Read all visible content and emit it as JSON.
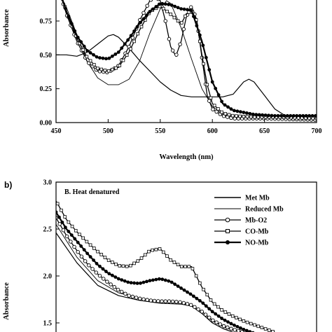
{
  "chart_data": [
    {
      "type": "line",
      "panel_label": "",
      "title": "",
      "xlabel": "Wavelength (nm)",
      "ylabel": "Absorbance",
      "xlim": [
        450,
        700
      ],
      "ylim": [
        0,
        1.0
      ],
      "xticks": [
        "450",
        "500",
        "550",
        "600",
        "650",
        "700"
      ],
      "yticks": [
        "0.00",
        "0.25",
        "0.50",
        "0.75"
      ],
      "series": [
        {
          "name": "Met Mb",
          "style": "thin",
          "x": [
            450,
            460,
            470,
            480,
            490,
            500,
            505,
            510,
            520,
            530,
            540,
            550,
            560,
            570,
            580,
            590,
            600,
            610,
            620,
            630,
            635,
            640,
            650,
            660,
            670,
            700
          ],
          "y": [
            0.5,
            0.5,
            0.49,
            0.52,
            0.58,
            0.64,
            0.65,
            0.63,
            0.55,
            0.46,
            0.38,
            0.3,
            0.24,
            0.2,
            0.19,
            0.19,
            0.19,
            0.19,
            0.21,
            0.3,
            0.32,
            0.3,
            0.2,
            0.1,
            0.05,
            0.03
          ]
        },
        {
          "name": "Reduced Mb",
          "style": "thin",
          "x": [
            450,
            460,
            470,
            480,
            490,
            500,
            510,
            520,
            530,
            540,
            550,
            556,
            560,
            570,
            580,
            590,
            600,
            610,
            620,
            630,
            650,
            700
          ],
          "y": [
            1.0,
            0.85,
            0.65,
            0.45,
            0.33,
            0.28,
            0.28,
            0.32,
            0.45,
            0.66,
            0.84,
            0.9,
            0.88,
            0.7,
            0.47,
            0.25,
            0.12,
            0.06,
            0.04,
            0.03,
            0.03,
            0.02
          ]
        },
        {
          "name": "Mb-O2",
          "style": "circle",
          "x": [
            450,
            460,
            470,
            480,
            490,
            500,
            510,
            520,
            530,
            540,
            545,
            550,
            555,
            560,
            565,
            570,
            575,
            580,
            585,
            590,
            595,
            600,
            610,
            620,
            650,
            700
          ],
          "y": [
            1.05,
            0.8,
            0.6,
            0.45,
            0.38,
            0.37,
            0.42,
            0.56,
            0.75,
            0.9,
            0.93,
            0.9,
            0.75,
            0.56,
            0.49,
            0.6,
            0.78,
            0.86,
            0.76,
            0.48,
            0.2,
            0.1,
            0.05,
            0.03,
            0.03,
            0.02
          ]
        },
        {
          "name": "CO-Mb",
          "style": "square",
          "x": [
            450,
            460,
            470,
            480,
            490,
            500,
            510,
            520,
            530,
            540,
            550,
            560,
            570,
            575,
            580,
            585,
            590,
            595,
            600,
            610,
            620,
            640,
            660,
            700
          ],
          "y": [
            1.05,
            0.82,
            0.62,
            0.48,
            0.4,
            0.38,
            0.41,
            0.52,
            0.68,
            0.82,
            0.86,
            0.8,
            0.73,
            0.8,
            0.83,
            0.75,
            0.5,
            0.28,
            0.14,
            0.07,
            0.05,
            0.04,
            0.04,
            0.03
          ]
        },
        {
          "name": "NO-Mb",
          "style": "filled",
          "x": [
            450,
            460,
            470,
            480,
            490,
            500,
            510,
            520,
            530,
            540,
            550,
            560,
            570,
            580,
            590,
            600,
            610,
            620,
            640,
            660,
            680,
            700
          ],
          "y": [
            1.05,
            0.82,
            0.64,
            0.53,
            0.48,
            0.47,
            0.52,
            0.62,
            0.73,
            0.82,
            0.88,
            0.87,
            0.84,
            0.83,
            0.6,
            0.3,
            0.14,
            0.09,
            0.06,
            0.05,
            0.05,
            0.05
          ]
        }
      ]
    },
    {
      "type": "line",
      "panel_label": "b)",
      "title": "B. Heat denatured",
      "xlabel": "",
      "ylabel": "Absorbance",
      "xlim": [
        450,
        700
      ],
      "ylim": [
        1.4,
        3.0
      ],
      "yticks": [
        "1.5",
        "2.0",
        "2.5",
        "3.0"
      ],
      "legend_position": "top-right",
      "series": [
        {
          "name": "Met Mb",
          "style": "thin",
          "x": [
            450,
            470,
            490,
            510,
            530,
            550,
            570,
            580,
            590,
            600,
            610,
            620,
            630,
            640,
            650,
            660
          ],
          "y": [
            2.46,
            2.14,
            1.9,
            1.79,
            1.74,
            1.71,
            1.7,
            1.68,
            1.6,
            1.5,
            1.44,
            1.4,
            1.37,
            1.34,
            1.31,
            1.28
          ]
        },
        {
          "name": "Reduced Mb",
          "style": "thin",
          "x": [
            450,
            470,
            490,
            510,
            530,
            550,
            570,
            580,
            590,
            600,
            610,
            620,
            630,
            640,
            650,
            660
          ],
          "y": [
            2.55,
            2.2,
            1.95,
            1.82,
            1.76,
            1.73,
            1.71,
            1.69,
            1.62,
            1.52,
            1.46,
            1.42,
            1.39,
            1.36,
            1.33,
            1.3
          ]
        },
        {
          "name": "Mb-O2",
          "style": "circle",
          "x": [
            450,
            460,
            470,
            480,
            490,
            500,
            510,
            520,
            530,
            540,
            550,
            560,
            570,
            580,
            590,
            600,
            610,
            620,
            630,
            640,
            650,
            660
          ],
          "y": [
            2.62,
            2.43,
            2.27,
            2.13,
            2.02,
            1.93,
            1.85,
            1.79,
            1.76,
            1.74,
            1.73,
            1.73,
            1.72,
            1.69,
            1.62,
            1.53,
            1.47,
            1.43,
            1.4,
            1.37,
            1.34,
            1.31
          ]
        },
        {
          "name": "CO-Mb",
          "style": "square",
          "x": [
            450,
            460,
            470,
            480,
            490,
            500,
            510,
            520,
            530,
            540,
            550,
            560,
            570,
            580,
            590,
            600,
            610,
            620,
            630,
            640,
            650,
            660
          ],
          "y": [
            2.8,
            2.6,
            2.47,
            2.36,
            2.26,
            2.17,
            2.11,
            2.1,
            2.17,
            2.27,
            2.29,
            2.17,
            2.1,
            2.1,
            1.88,
            1.72,
            1.63,
            1.57,
            1.52,
            1.48,
            1.44,
            1.4
          ]
        },
        {
          "name": "NO-Mb",
          "style": "filled",
          "x": [
            450,
            460,
            470,
            480,
            490,
            500,
            510,
            520,
            530,
            540,
            550,
            560,
            570,
            580,
            590,
            600,
            610,
            620,
            630,
            640,
            650,
            660
          ],
          "y": [
            2.68,
            2.5,
            2.37,
            2.24,
            2.12,
            2.03,
            1.97,
            1.93,
            1.92,
            1.95,
            1.97,
            1.94,
            1.87,
            1.8,
            1.72,
            1.62,
            1.54,
            1.48,
            1.43,
            1.39,
            1.35,
            1.32
          ]
        }
      ]
    }
  ]
}
